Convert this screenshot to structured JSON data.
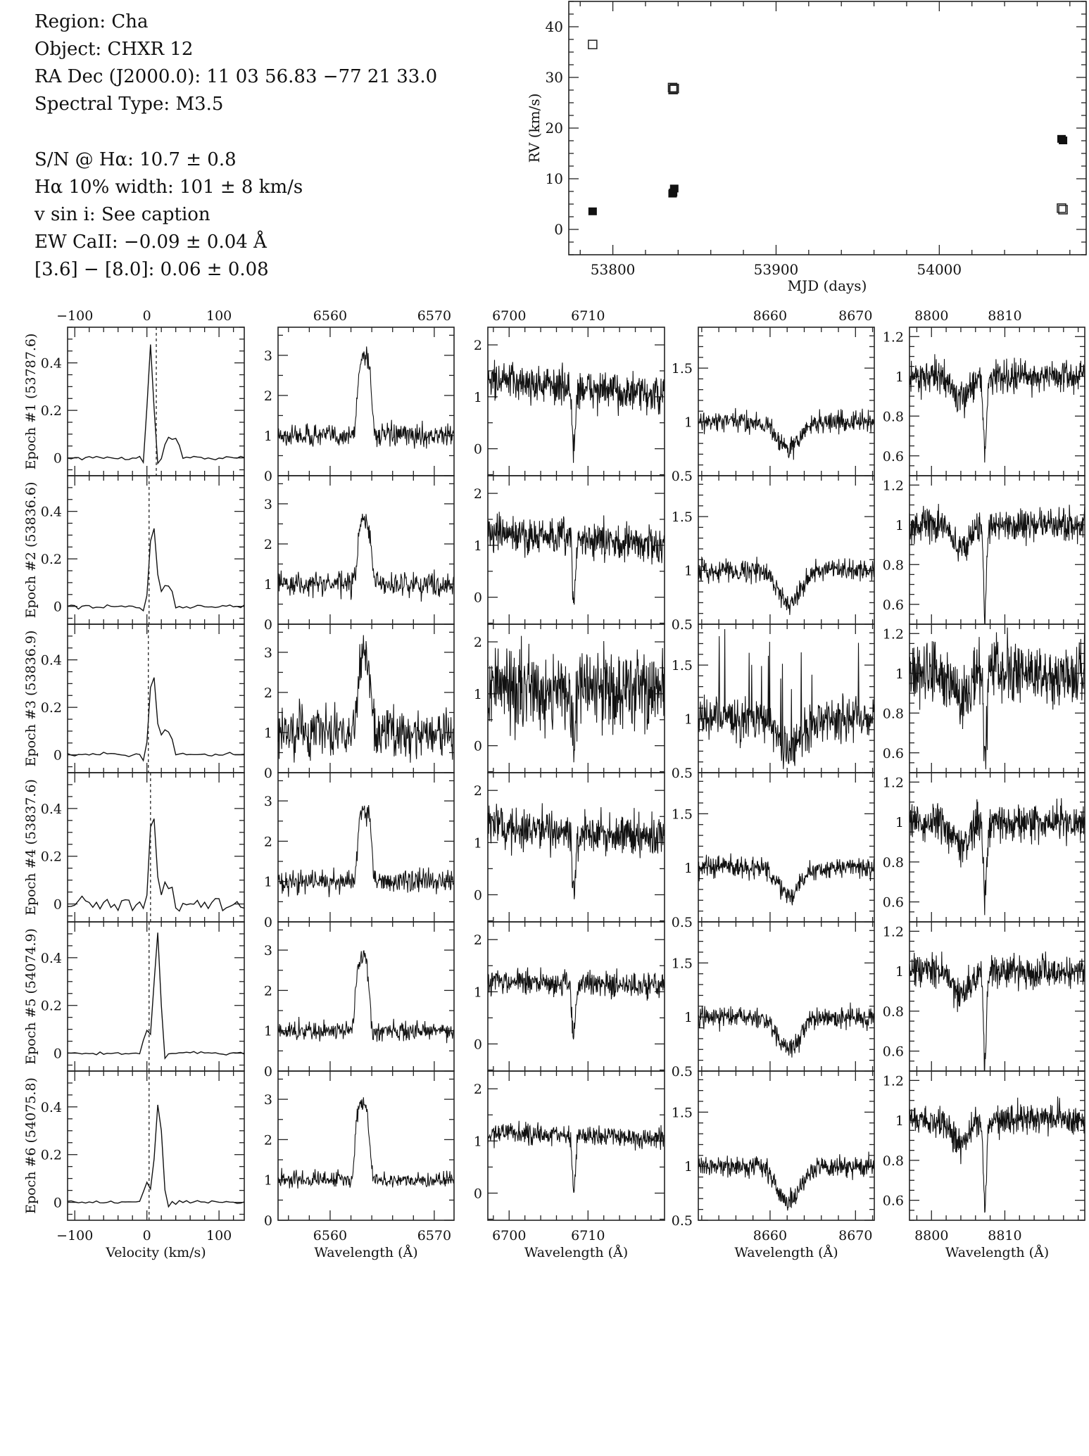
{
  "info": {
    "lines_top": [
      "Region: Cha",
      "Object: CHXR 12",
      "RA Dec (J2000.0): 11 03 56.83 −77 21 33.0",
      "Spectral Type: M3.5"
    ],
    "lines_bottom": [
      "S/N @ Hα: 10.7 ± 0.8",
      "Hα 10% width: 101 ± 8 km/s",
      "v sin i: See caption",
      "EW CaII: −0.09 ± 0.04 Å",
      "[3.6] − [8.0]: 0.06 ± 0.08"
    ]
  },
  "chart_data": [
    {
      "type": "scatter",
      "title": "",
      "xlabel": "MJD (days)",
      "ylabel": "RV (km/s)",
      "xlim": [
        53773,
        54090
      ],
      "ylim": [
        -5,
        45
      ],
      "xticks": [
        53800,
        53900,
        54000
      ],
      "yticks": [
        0,
        10,
        20,
        30,
        40
      ],
      "series": [
        {
          "name": "filled",
          "marker": "filled-square",
          "x": [
            53787.6,
            53836.6,
            53836.9,
            53837.6,
            54074.9,
            54075.8
          ],
          "y": [
            3.5,
            7.0,
            7.2,
            8.0,
            17.8,
            17.5
          ]
        },
        {
          "name": "open",
          "marker": "open-square",
          "x": [
            53787.6,
            53836.6,
            53836.9,
            53837.6,
            54074.9,
            54075.8
          ],
          "y": [
            36.5,
            28.0,
            27.6,
            27.8,
            4.2,
            3.9
          ]
        }
      ]
    },
    {
      "type": "line",
      "columns": [
        {
          "xlabel": "Velocity (km/s)",
          "xlim": [
            -110,
            135
          ],
          "ylim": [
            -0.075,
            0.55
          ],
          "xticks": [
            -100,
            0,
            100
          ],
          "yticks": [
            0,
            0.2,
            0.4
          ],
          "xminor": 20,
          "yminor": 0.05
        },
        {
          "xlabel": "Wavelength (Å)",
          "xlim": [
            6555,
            6571.9
          ],
          "ylim": [
            0,
            3.7
          ],
          "xticks": [
            6560,
            6570
          ],
          "yticks": [
            0,
            1,
            2,
            3
          ],
          "xminor": 2,
          "yminor": 0.5
        },
        {
          "xlabel": "Wavelength (Å)",
          "xlim": [
            6697.3,
            6719.7
          ],
          "ylim": [
            -0.52,
            2.34
          ],
          "xticks": [
            6700,
            6710
          ],
          "yticks": [
            0,
            1,
            2
          ],
          "xminor": 2,
          "yminor": 0.5
        },
        {
          "xlabel": "Wavelength (Å)",
          "xlim": [
            8651.6,
            8672.2
          ],
          "ylim": [
            0.5,
            1.88
          ],
          "xticks": [
            8660,
            8670
          ],
          "yticks": [
            0.5,
            1,
            1.5
          ],
          "xminor": 2,
          "yminor": 0.1
        },
        {
          "xlabel": "Wavelength (Å)",
          "xlim": [
            8797,
            8820.9
          ],
          "ylim": [
            0.5,
            1.247
          ],
          "xticks": [
            8800,
            8810
          ],
          "yticks": [
            0.6,
            0.8,
            1,
            1.2
          ],
          "xminor": 2,
          "yminor": 0.05
        }
      ],
      "epochs": [
        {
          "label": "Epoch #1 (53787.6)",
          "ccf": {
            "peak_v": 5,
            "peak_h": 0.48,
            "sec_v": 35,
            "sec_h": 0.085,
            "rv_line": 13,
            "noise": 0.004
          },
          "halpha": {
            "center": 6563.3,
            "peak": 3.0,
            "noise": 0.14
          },
          "li": {
            "cont": 1.3,
            "slope": -0.015,
            "depth": 1.2,
            "noise": 0.18
          },
          "ca": {
            "depth": 0.25,
            "noise": 0.05,
            "spikes": 0
          },
          "line8807": {
            "depth": 0.4,
            "noise": 0.04
          }
        },
        {
          "label": "Epoch #2 (53836.6)",
          "ccf": {
            "peak_v": 8,
            "peak_h": 0.42,
            "sec_v": 26,
            "sec_h": 0.09,
            "rv_line": 3,
            "noise": 0.004
          },
          "halpha": {
            "center": 6563.3,
            "peak": 2.55,
            "noise": 0.15
          },
          "li": {
            "cont": 1.2,
            "slope": -0.01,
            "depth": 1.1,
            "noise": 0.18
          },
          "ca": {
            "depth": 0.3,
            "noise": 0.05,
            "spikes": 0
          },
          "line8807": {
            "depth": 0.42,
            "noise": 0.04
          }
        },
        {
          "label": "Epoch #3 (53836.9)",
          "ccf": {
            "peak_v": 8,
            "peak_h": 0.42,
            "sec_v": 26,
            "sec_h": 0.1,
            "rv_line": 2,
            "noise": 0.004
          },
          "halpha": {
            "center": 6563.3,
            "peak": 2.9,
            "noise": 0.32
          },
          "li": {
            "cont": 1.1,
            "slope": 0,
            "depth": 1.1,
            "noise": 0.38
          },
          "ca": {
            "depth": 0.3,
            "noise": 0.1,
            "spikes": 9
          },
          "line8807": {
            "depth": 0.4,
            "noise": 0.08
          }
        },
        {
          "label": "Epoch #4 (53837.6)",
          "ccf": {
            "peak_v": 8,
            "peak_h": 0.45,
            "sec_v": 26,
            "sec_h": 0.08,
            "rv_line": 5,
            "noise": 0.015
          },
          "halpha": {
            "center": 6563.3,
            "peak": 2.8,
            "noise": 0.15
          },
          "li": {
            "cont": 1.3,
            "slope": -0.01,
            "depth": 1.2,
            "noise": 0.2
          },
          "ca": {
            "depth": 0.25,
            "noise": 0.05,
            "spikes": 0
          },
          "line8807": {
            "depth": 0.4,
            "noise": 0.05
          }
        },
        {
          "label": "Epoch #5 (54074.9)",
          "ccf": {
            "peak_v": 15,
            "peak_h": 0.44,
            "sec_v": 5,
            "sec_h": 0.1,
            "rv_line": 3,
            "noise": 0.003
          },
          "halpha": {
            "center": 6563.1,
            "peak": 2.8,
            "noise": 0.12
          },
          "li": {
            "cont": 1.2,
            "slope": -0.005,
            "depth": 1.05,
            "noise": 0.12
          },
          "ca": {
            "depth": 0.3,
            "noise": 0.05,
            "spikes": 0
          },
          "line8807": {
            "depth": 0.45,
            "noise": 0.04
          }
        },
        {
          "label": "Epoch #6 (54075.8)",
          "ccf": {
            "peak_v": 17,
            "peak_h": 0.46,
            "sec_v": 5,
            "sec_h": 0.08,
            "rv_line": 3,
            "noise": 0.003
          },
          "halpha": {
            "center": 6563.1,
            "peak": 2.9,
            "noise": 0.1
          },
          "li": {
            "cont": 1.15,
            "slope": -0.005,
            "depth": 1.05,
            "noise": 0.1
          },
          "ca": {
            "depth": 0.35,
            "noise": 0.05,
            "spikes": 0
          },
          "line8807": {
            "depth": 0.45,
            "noise": 0.04
          }
        }
      ]
    }
  ]
}
